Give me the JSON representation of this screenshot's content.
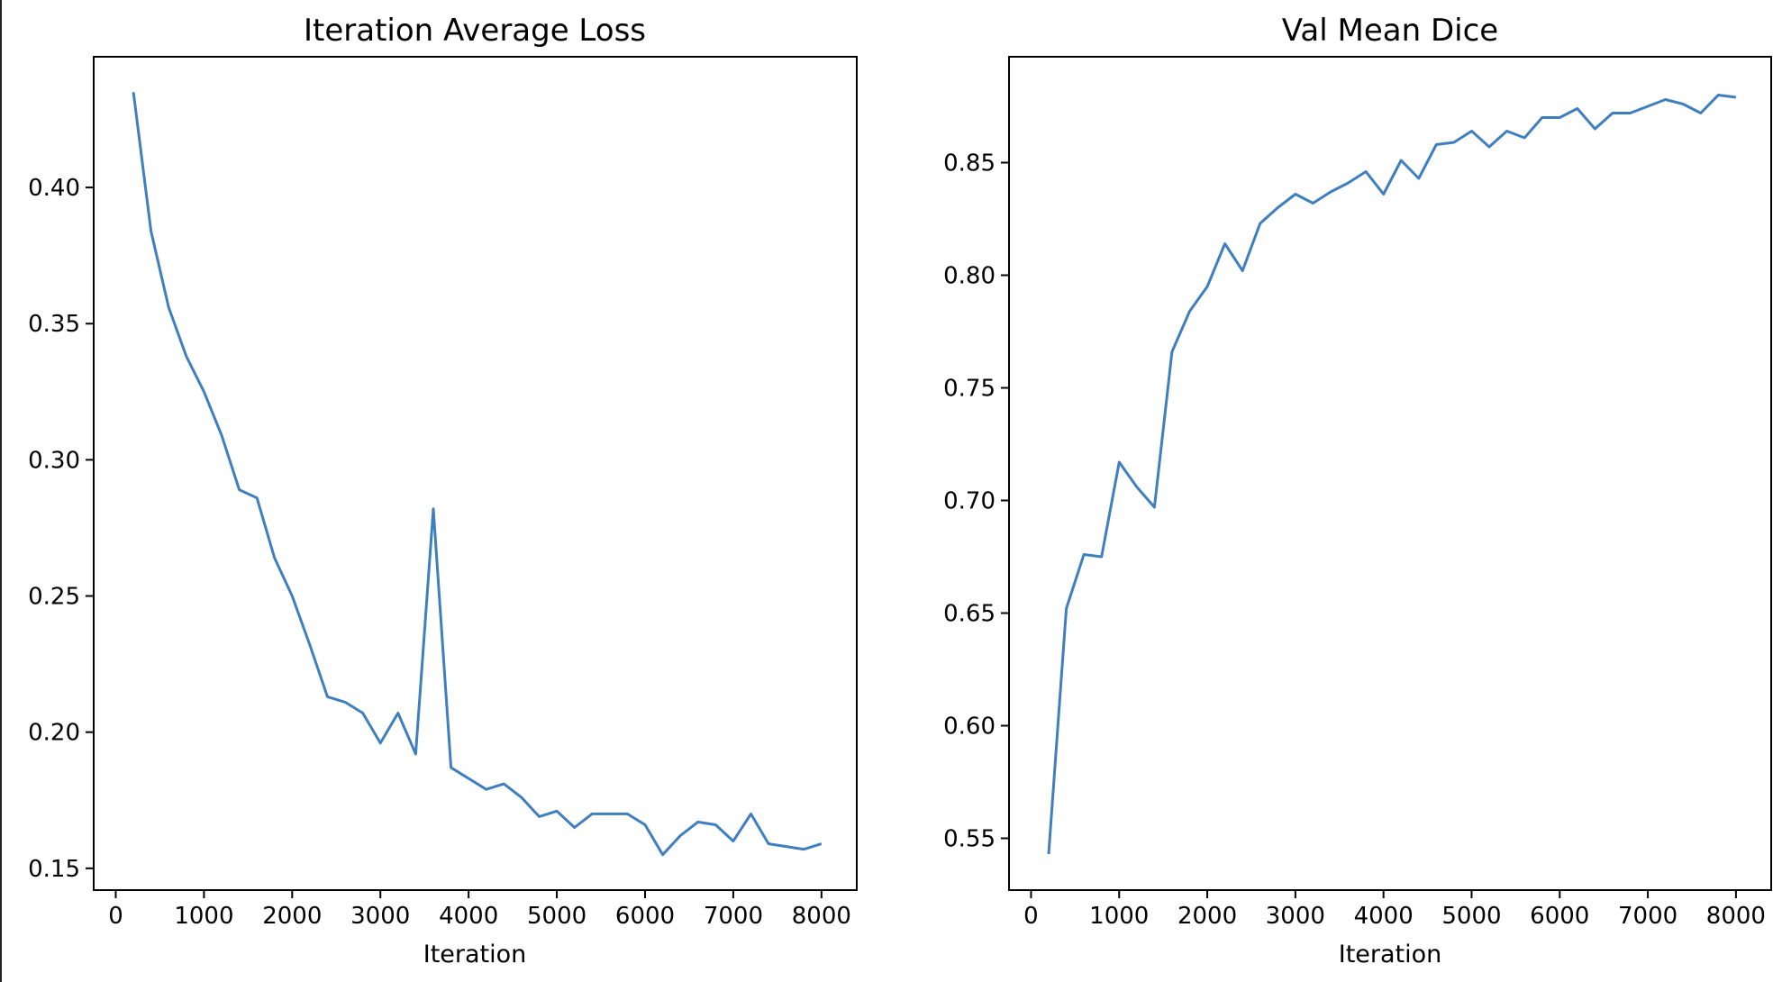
{
  "chart_data": [
    {
      "type": "line",
      "title": "Iteration Average Loss",
      "xlabel": "Iteration",
      "ylabel": "",
      "xlim": [
        -250,
        8400
      ],
      "ylim": [
        0.142,
        0.448
      ],
      "xticks": [
        0,
        1000,
        2000,
        3000,
        4000,
        5000,
        6000,
        7000,
        8000
      ],
      "xtick_labels": [
        "0",
        "1000",
        "2000",
        "3000",
        "4000",
        "5000",
        "6000",
        "7000",
        "8000"
      ],
      "yticks": [
        0.15,
        0.2,
        0.25,
        0.3,
        0.35,
        0.4
      ],
      "ytick_labels": [
        "0.15",
        "0.20",
        "0.25",
        "0.30",
        "0.35",
        "0.40"
      ],
      "grid": false,
      "color": "#3f7fbf",
      "x": [
        200,
        400,
        600,
        800,
        1000,
        1200,
        1400,
        1600,
        1800,
        2000,
        2200,
        2400,
        2600,
        2800,
        3000,
        3200,
        3400,
        3600,
        3800,
        4000,
        4200,
        4400,
        4600,
        4800,
        5000,
        5200,
        5400,
        5600,
        5800,
        6000,
        6200,
        6400,
        6600,
        6800,
        7000,
        7200,
        7400,
        7600,
        7800,
        8000
      ],
      "values": [
        0.435,
        0.384,
        0.356,
        0.338,
        0.325,
        0.309,
        0.289,
        0.286,
        0.264,
        0.25,
        0.232,
        0.213,
        0.211,
        0.207,
        0.196,
        0.207,
        0.192,
        0.282,
        0.187,
        0.183,
        0.179,
        0.181,
        0.176,
        0.169,
        0.171,
        0.165,
        0.17,
        0.17,
        0.17,
        0.166,
        0.155,
        0.162,
        0.167,
        0.166,
        0.16,
        0.17,
        0.159,
        0.158,
        0.157,
        0.159
      ]
    },
    {
      "type": "line",
      "title": "Val Mean Dice",
      "xlabel": "Iteration",
      "ylabel": "",
      "xlim": [
        -250,
        8400
      ],
      "ylim": [
        0.527,
        0.897
      ],
      "xticks": [
        0,
        1000,
        2000,
        3000,
        4000,
        5000,
        6000,
        7000,
        8000
      ],
      "xtick_labels": [
        "0",
        "1000",
        "2000",
        "3000",
        "4000",
        "5000",
        "6000",
        "7000",
        "8000"
      ],
      "yticks": [
        0.55,
        0.6,
        0.65,
        0.7,
        0.75,
        0.8,
        0.85
      ],
      "ytick_labels": [
        "0.55",
        "0.60",
        "0.65",
        "0.70",
        "0.75",
        "0.80",
        "0.85"
      ],
      "grid": false,
      "color": "#3f7fbf",
      "x": [
        200,
        400,
        600,
        800,
        1000,
        1200,
        1400,
        1600,
        1800,
        2000,
        2200,
        2400,
        2600,
        2800,
        3000,
        3200,
        3400,
        3600,
        3800,
        4000,
        4200,
        4400,
        4600,
        4800,
        5000,
        5200,
        5400,
        5600,
        5800,
        6000,
        6200,
        6400,
        6600,
        6800,
        7000,
        7200,
        7400,
        7600,
        7800,
        8000
      ],
      "values": [
        0.543,
        0.652,
        0.676,
        0.675,
        0.717,
        0.706,
        0.697,
        0.766,
        0.784,
        0.795,
        0.814,
        0.802,
        0.823,
        0.83,
        0.836,
        0.832,
        0.837,
        0.841,
        0.846,
        0.836,
        0.851,
        0.843,
        0.858,
        0.859,
        0.864,
        0.857,
        0.864,
        0.861,
        0.87,
        0.87,
        0.874,
        0.865,
        0.872,
        0.872,
        0.875,
        0.878,
        0.876,
        0.872,
        0.88,
        0.879
      ]
    }
  ]
}
